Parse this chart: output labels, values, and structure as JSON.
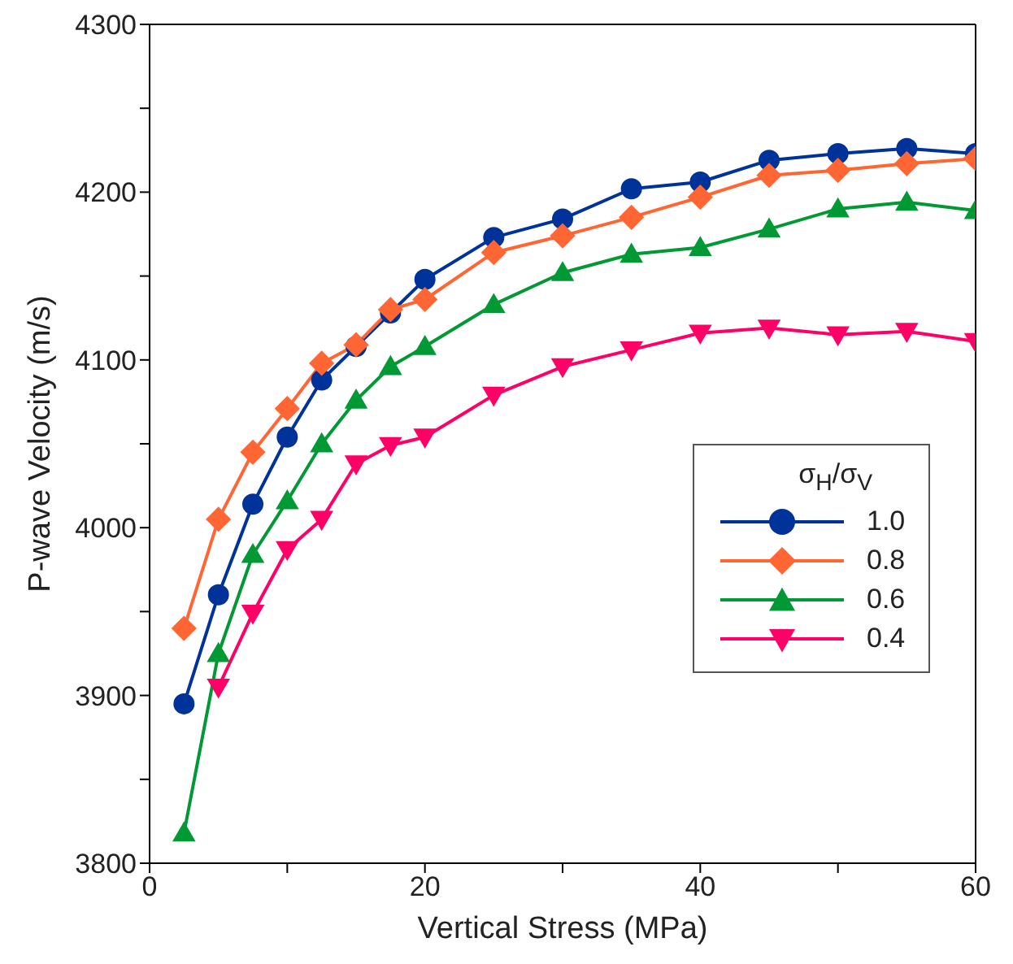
{
  "chart_data": {
    "type": "line",
    "xlabel": "Vertical Stress (MPa)",
    "ylabel": "P-wave Velocity (m/s)",
    "legend_title": "σ$_{H}$/σ$_{V}$",
    "x": [
      2.5,
      5,
      7.5,
      10,
      12.5,
      15,
      17.5,
      20,
      25,
      30,
      35,
      40,
      45,
      50,
      55,
      60
    ],
    "xlim": [
      0,
      60
    ],
    "xticks": [
      0,
      {
        "value": 10,
        "label": null
      },
      20,
      {
        "value": 30,
        "label": null
      },
      40,
      {
        "value": 50,
        "label": null
      },
      60
    ],
    "ylim": [
      3800,
      4300
    ],
    "yticks": [
      3800,
      {
        "value": 3850,
        "label": null
      },
      3900,
      {
        "value": 3950,
        "label": null
      },
      4000,
      {
        "value": 4050,
        "label": null
      },
      4100,
      {
        "value": 4150,
        "label": null
      },
      4200,
      {
        "value": 4250,
        "label": null
      },
      4300
    ],
    "legend": "right",
    "line_style": "solid",
    "series": [
      {
        "name": "1.0",
        "color": "#003399",
        "marker": "circle",
        "values": [
          3895,
          3960,
          4014,
          4054,
          4088,
          4108,
          4128,
          4148,
          4173,
          4184,
          4202,
          4206,
          4219,
          4223,
          4226,
          4223
        ]
      },
      {
        "name": "0.8",
        "color": "#ff6633",
        "marker": "diamond",
        "values": [
          3940,
          4005,
          4045,
          4071,
          4098,
          4109,
          4130,
          4136,
          4164,
          4174,
          4185,
          4197,
          4210,
          4213,
          4217,
          4220
        ]
      },
      {
        "name": "0.6",
        "color": "#009933",
        "marker": "triangle",
        "values": [
          3818,
          3925,
          3984,
          4016,
          4050,
          4076,
          4096,
          4108,
          4133,
          4152,
          4163,
          4167,
          4178,
          4190,
          4194,
          4189
        ]
      },
      {
        "name": "0.4",
        "color": "#ff0066",
        "marker": "triangle-down",
        "x": [
          5,
          7.5,
          10,
          12.5,
          15,
          17.5,
          20,
          25,
          30,
          35,
          40,
          45,
          50,
          55,
          60
        ],
        "values": [
          3905,
          3949,
          3987,
          4005,
          4038,
          4049,
          4054,
          4079,
          4096,
          4106,
          4116,
          4119,
          4115,
          4117,
          4111
        ]
      }
    ]
  }
}
